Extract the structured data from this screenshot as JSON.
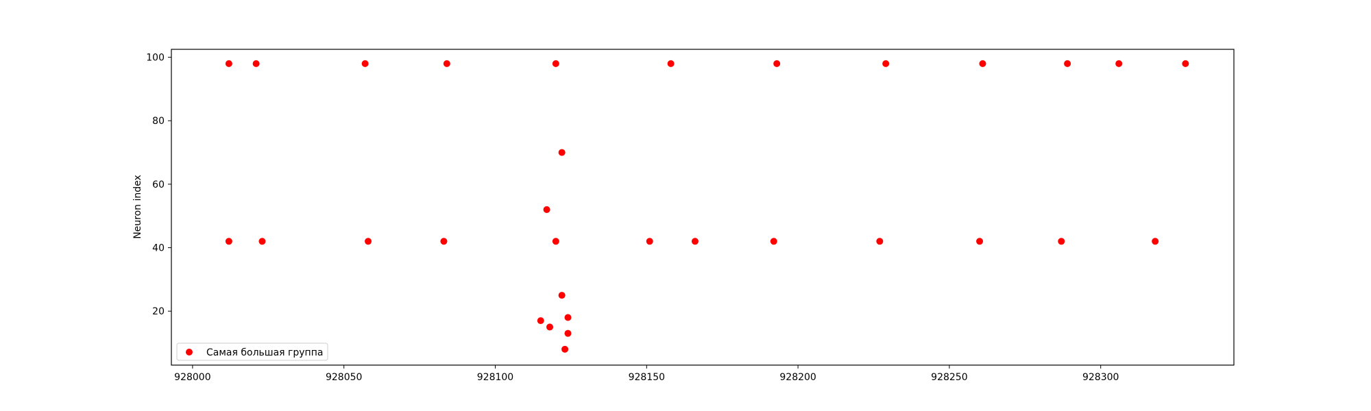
{
  "chart_data": {
    "type": "scatter",
    "title": "",
    "xlabel": "",
    "ylabel": "Neuron index",
    "xlim": [
      927993,
      928344
    ],
    "ylim": [
      3,
      102.5
    ],
    "xticks": [
      928000,
      928050,
      928100,
      928150,
      928200,
      928250,
      928300
    ],
    "yticks": [
      20,
      40,
      60,
      80,
      100
    ],
    "grid": false,
    "legend_position": "lower-left",
    "series": [
      {
        "name": "Самая большая группа",
        "color": "#ff0000",
        "points": [
          {
            "x": 928012,
            "y": 98
          },
          {
            "x": 928021,
            "y": 98
          },
          {
            "x": 928057,
            "y": 98
          },
          {
            "x": 928084,
            "y": 98
          },
          {
            "x": 928120,
            "y": 98
          },
          {
            "x": 928158,
            "y": 98
          },
          {
            "x": 928193,
            "y": 98
          },
          {
            "x": 928229,
            "y": 98
          },
          {
            "x": 928261,
            "y": 98
          },
          {
            "x": 928289,
            "y": 98
          },
          {
            "x": 928306,
            "y": 98
          },
          {
            "x": 928328,
            "y": 98
          },
          {
            "x": 928012,
            "y": 42
          },
          {
            "x": 928023,
            "y": 42
          },
          {
            "x": 928058,
            "y": 42
          },
          {
            "x": 928083,
            "y": 42
          },
          {
            "x": 928120,
            "y": 42
          },
          {
            "x": 928151,
            "y": 42
          },
          {
            "x": 928166,
            "y": 42
          },
          {
            "x": 928192,
            "y": 42
          },
          {
            "x": 928227,
            "y": 42
          },
          {
            "x": 928260,
            "y": 42
          },
          {
            "x": 928287,
            "y": 42
          },
          {
            "x": 928318,
            "y": 42
          },
          {
            "x": 928122,
            "y": 70
          },
          {
            "x": 928117,
            "y": 52
          },
          {
            "x": 928122,
            "y": 25
          },
          {
            "x": 928115,
            "y": 17
          },
          {
            "x": 928118,
            "y": 15
          },
          {
            "x": 928124,
            "y": 18
          },
          {
            "x": 928124,
            "y": 13
          },
          {
            "x": 928123,
            "y": 8
          }
        ]
      }
    ]
  }
}
